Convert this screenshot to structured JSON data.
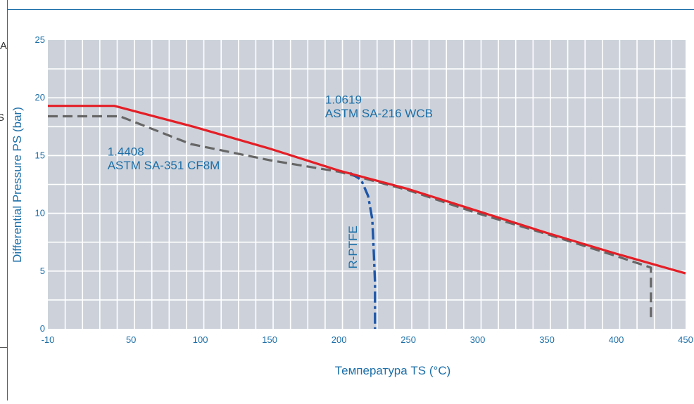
{
  "chart_data": {
    "type": "line",
    "title": "",
    "xlabel": "Температура TS (°C)",
    "ylabel": "Differential Pressure PS (bar)",
    "xlim": [
      -10,
      450
    ],
    "ylim": [
      0,
      25
    ],
    "x_ticks": [
      -10,
      50,
      100,
      150,
      200,
      250,
      300,
      350,
      400,
      450
    ],
    "y_ticks": [
      0,
      5,
      10,
      15,
      20,
      25
    ],
    "grid": true,
    "x_grid_step": 12.5,
    "y_grid_step": 2.5,
    "legend": "none",
    "series": [
      {
        "name": "1.0619 ASTM SA-216 WCB",
        "style": "solid",
        "color": "#e41e26",
        "points": [
          [
            -10,
            19.3
          ],
          [
            38,
            19.3
          ],
          [
            95,
            17.5
          ],
          [
            150,
            15.6
          ],
          [
            200,
            13.7
          ],
          [
            250,
            12.1
          ],
          [
            300,
            10.2
          ],
          [
            350,
            8.3
          ],
          [
            400,
            6.5
          ],
          [
            450,
            4.8
          ]
        ]
      },
      {
        "name": "1.4408 ASTM SA-351 CF8M",
        "style": "dashed",
        "color": "#666666",
        "points": [
          [
            -10,
            18.4
          ],
          [
            42,
            18.4
          ],
          [
            93,
            16.0
          ],
          [
            150,
            14.6
          ],
          [
            200,
            13.6
          ],
          [
            250,
            12.0
          ],
          [
            300,
            10.0
          ],
          [
            350,
            8.2
          ],
          [
            400,
            6.3
          ],
          [
            425,
            5.3
          ],
          [
            425,
            0.7
          ]
        ]
      },
      {
        "name": "R-PTFE",
        "style": "dashdot",
        "color": "#1e56a8",
        "points": [
          [
            208,
            13.5
          ],
          [
            216,
            12.9
          ],
          [
            221,
            11.5
          ],
          [
            224,
            9.5
          ],
          [
            225,
            7.0
          ],
          [
            226,
            4.0
          ],
          [
            226,
            0
          ]
        ]
      }
    ],
    "annotations": [
      {
        "id": "wcb-line1",
        "text": "1.0619",
        "x": 190,
        "y": 19.5
      },
      {
        "id": "wcb-line2",
        "text": "ASTM SA-216 WCB",
        "x": 190,
        "y": 18.3
      },
      {
        "id": "cf8m-line1",
        "text": "1.4408",
        "x": 33,
        "y": 15.0
      },
      {
        "id": "cf8m-line2",
        "text": "ASTM SA-351 CF8M",
        "x": 33,
        "y": 13.8
      },
      {
        "id": "ptfe",
        "text": "R-PTFE",
        "x": 213,
        "y": 5.2,
        "rotate": -90
      }
    ],
    "colors": {
      "plot_bg": "#cdd2da",
      "grid": "#ffffff",
      "axis_text": "#1c6fa8",
      "border": "#1c6fa8"
    }
  },
  "edge_labels": {
    "left_top": "A",
    "left_mid": "S"
  }
}
